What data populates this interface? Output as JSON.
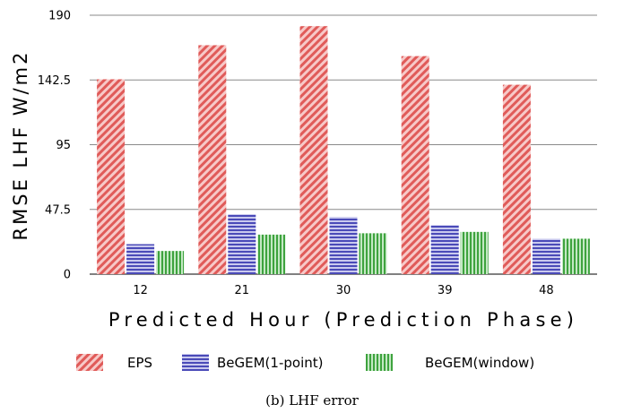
{
  "chart_data": {
    "type": "bar",
    "categories": [
      "12",
      "21",
      "30",
      "39",
      "48"
    ],
    "series": [
      {
        "name": "EPS",
        "values": [
          143,
          168,
          182,
          160,
          139
        ],
        "color": "#e8716f",
        "pattern": "diagonal-stripes"
      },
      {
        "name": "BeGEM(1-point)",
        "values": [
          22,
          44,
          42,
          36,
          26
        ],
        "color": "#5c5cc4",
        "pattern": "horizontal-stripes"
      },
      {
        "name": "BeGEM(window)",
        "values": [
          17,
          29,
          30,
          31,
          26
        ],
        "color": "#4cb04c",
        "pattern": "vertical-stripes"
      }
    ],
    "y_ticks": [
      "0",
      "47.5",
      "95",
      "142.5",
      "190"
    ],
    "ylim": [
      0,
      190
    ],
    "ylabel": "RMSE LHF W/m2",
    "xlabel": "Predicted Hour (Prediction Phase)",
    "grid": "horizontal",
    "legend_position": "bottom"
  },
  "caption": "(b)  LHF error",
  "legend": {
    "eps": "EPS",
    "begem1": "BeGEM(1-point)",
    "begemw": "BeGEM(window)"
  }
}
